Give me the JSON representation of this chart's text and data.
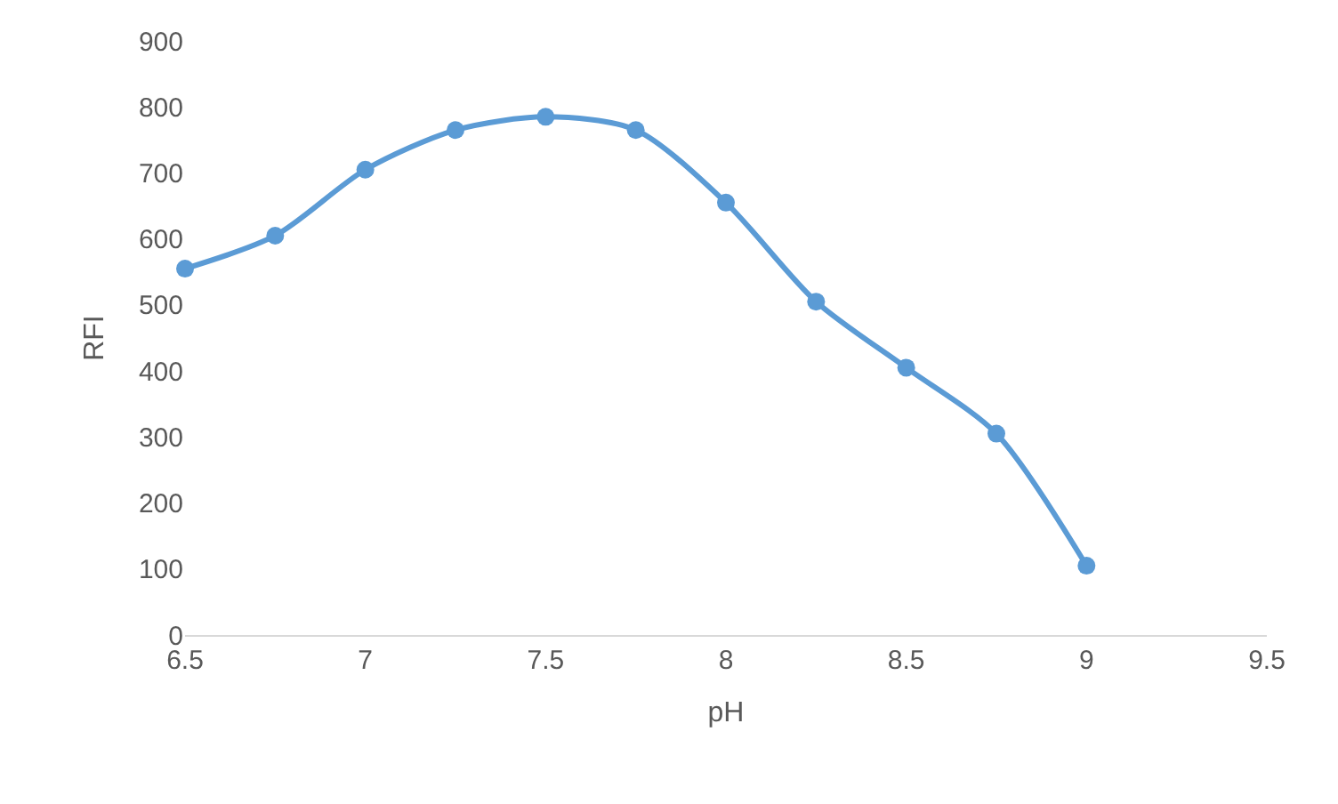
{
  "chart_data": {
    "type": "line",
    "xlabel": "pH",
    "ylabel": "RFI",
    "x": [
      6.5,
      6.75,
      7,
      7.25,
      7.5,
      7.75,
      8,
      8.25,
      8.5,
      8.75,
      9
    ],
    "series": [
      {
        "color": "#5b9bd5",
        "values": [
          555,
          605,
          705,
          765,
          785,
          765,
          655,
          505,
          405,
          305,
          105
        ]
      }
    ],
    "xlim": [
      6.5,
      9.5
    ],
    "xticks": [
      6.5,
      7,
      7.5,
      8,
      8.5,
      9,
      9.5
    ],
    "ylim": [
      0,
      900
    ],
    "yticks": [
      0,
      100,
      200,
      300,
      400,
      500,
      600,
      700,
      800,
      900
    ],
    "grid": false,
    "legend": false,
    "marker": "circle",
    "line_style": "solid"
  }
}
